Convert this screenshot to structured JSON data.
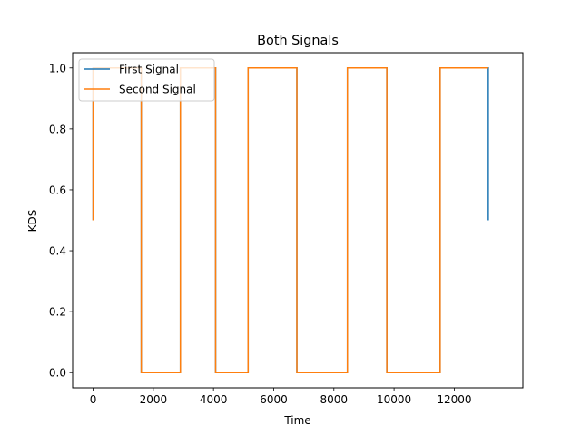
{
  "chart_data": {
    "type": "line",
    "title": "Both Signals",
    "xlabel": "Time",
    "ylabel": "KDS",
    "xlim": [
      -680,
      14280
    ],
    "ylim": [
      -0.05,
      1.05
    ],
    "x_ticks": [
      0,
      2000,
      4000,
      6000,
      8000,
      10000,
      12000
    ],
    "x_tick_labels": [
      "0",
      "2000",
      "4000",
      "6000",
      "8000",
      "10000",
      "12000"
    ],
    "y_ticks": [
      0.0,
      0.2,
      0.4,
      0.6,
      0.8,
      1.0
    ],
    "y_tick_labels": [
      "0.0",
      "0.2",
      "0.4",
      "0.6",
      "0.8",
      "1.0"
    ],
    "grid": false,
    "legend": "upper-left",
    "series": [
      {
        "name": "First Signal",
        "color": "#1f77b4",
        "x": [
          0,
          0,
          1600,
          1600,
          2900,
          2900,
          4070,
          4070,
          5150,
          5150,
          6770,
          6770,
          8450,
          8450,
          9760,
          9760,
          11530,
          11530,
          13130,
          13130
        ],
        "y": [
          0.5,
          1,
          1,
          0,
          0,
          1,
          1,
          0,
          0,
          1,
          1,
          0,
          0,
          1,
          1,
          0,
          0,
          1,
          1,
          0.5
        ]
      },
      {
        "name": "Second Signal",
        "color": "#ff7f0e",
        "x": [
          0,
          0,
          1600,
          1600,
          2900,
          2900,
          4070,
          4070,
          5150,
          5150,
          6770,
          6770,
          8450,
          8450,
          9760,
          9760,
          11530,
          11530,
          13130
        ],
        "y": [
          0.5,
          1,
          1,
          0,
          0,
          1,
          1,
          0,
          0,
          1,
          1,
          0,
          0,
          1,
          1,
          0,
          0,
          1,
          1
        ]
      }
    ]
  }
}
